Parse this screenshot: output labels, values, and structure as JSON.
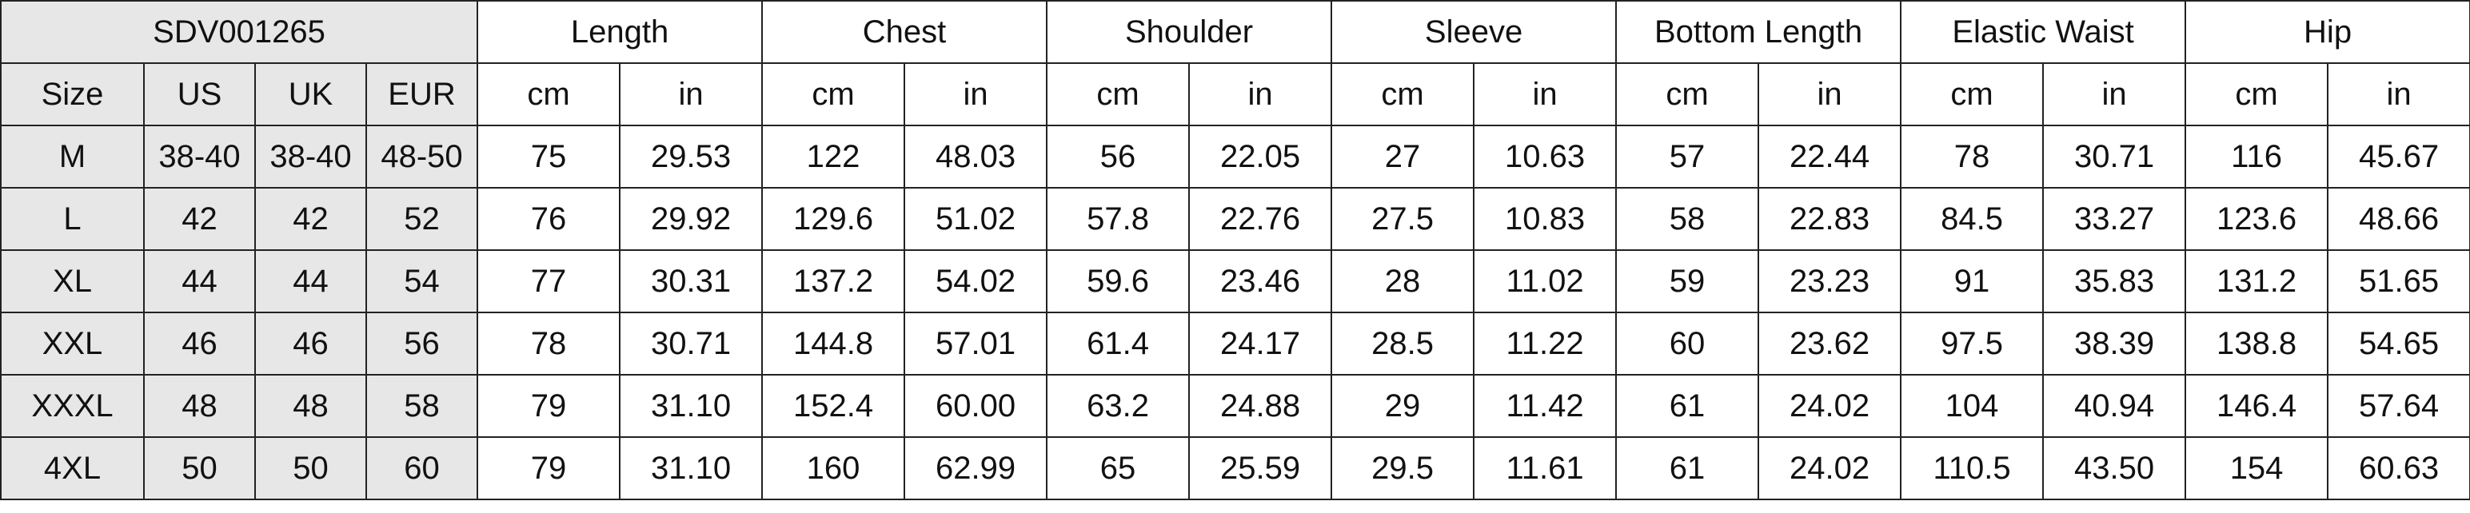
{
  "style_code": "SDV001265",
  "size_headers": [
    "Size",
    "US",
    "UK",
    "EUR"
  ],
  "measurements": [
    "Length",
    "Chest",
    "Shoulder",
    "Sleeve",
    "Bottom Length",
    "Elastic Waist",
    "Hip"
  ],
  "units": [
    "cm",
    "in"
  ],
  "colors": {
    "header_bg": "#e7e7e7",
    "border": "#222222"
  },
  "rows": [
    {
      "size": "M",
      "us": "38-40",
      "uk": "38-40",
      "eur": "48-50",
      "values": [
        "75",
        "29.53",
        "122",
        "48.03",
        "56",
        "22.05",
        "27",
        "10.63",
        "57",
        "22.44",
        "78",
        "30.71",
        "116",
        "45.67"
      ]
    },
    {
      "size": "L",
      "us": "42",
      "uk": "42",
      "eur": "52",
      "values": [
        "76",
        "29.92",
        "129.6",
        "51.02",
        "57.8",
        "22.76",
        "27.5",
        "10.83",
        "58",
        "22.83",
        "84.5",
        "33.27",
        "123.6",
        "48.66"
      ]
    },
    {
      "size": "XL",
      "us": "44",
      "uk": "44",
      "eur": "54",
      "values": [
        "77",
        "30.31",
        "137.2",
        "54.02",
        "59.6",
        "23.46",
        "28",
        "11.02",
        "59",
        "23.23",
        "91",
        "35.83",
        "131.2",
        "51.65"
      ]
    },
    {
      "size": "XXL",
      "us": "46",
      "uk": "46",
      "eur": "56",
      "values": [
        "78",
        "30.71",
        "144.8",
        "57.01",
        "61.4",
        "24.17",
        "28.5",
        "11.22",
        "60",
        "23.62",
        "97.5",
        "38.39",
        "138.8",
        "54.65"
      ]
    },
    {
      "size": "XXXL",
      "us": "48",
      "uk": "48",
      "eur": "58",
      "values": [
        "79",
        "31.10",
        "152.4",
        "60.00",
        "63.2",
        "24.88",
        "29",
        "11.42",
        "61",
        "24.02",
        "104",
        "40.94",
        "146.4",
        "57.64"
      ]
    },
    {
      "size": "4XL",
      "us": "50",
      "uk": "50",
      "eur": "60",
      "values": [
        "79",
        "31.10",
        "160",
        "62.99",
        "65",
        "25.59",
        "29.5",
        "11.61",
        "61",
        "24.02",
        "110.5",
        "43.50",
        "154",
        "60.63"
      ]
    }
  ]
}
